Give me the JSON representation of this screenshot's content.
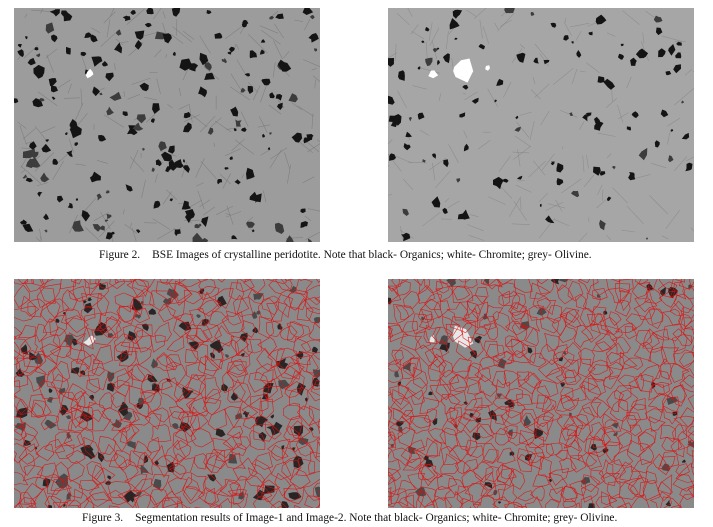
{
  "figure2": {
    "label": "Figure 2.",
    "text": "BSE Images of crystalline peridotite. Note that black- Organics; white- Chromite; grey- Olivine."
  },
  "figure3": {
    "label": "Figure 3.",
    "text": "Segmentation results of Image-1 and Image-2. Note that black- Organics; white- Chromite; grey- Olivine."
  },
  "colors": {
    "background_grey": "#9c9c9c",
    "organics": "#141414",
    "chromite": "#ffffff",
    "segmentation_grey": "#8a8a8a",
    "boundary_red": "#e01010"
  }
}
